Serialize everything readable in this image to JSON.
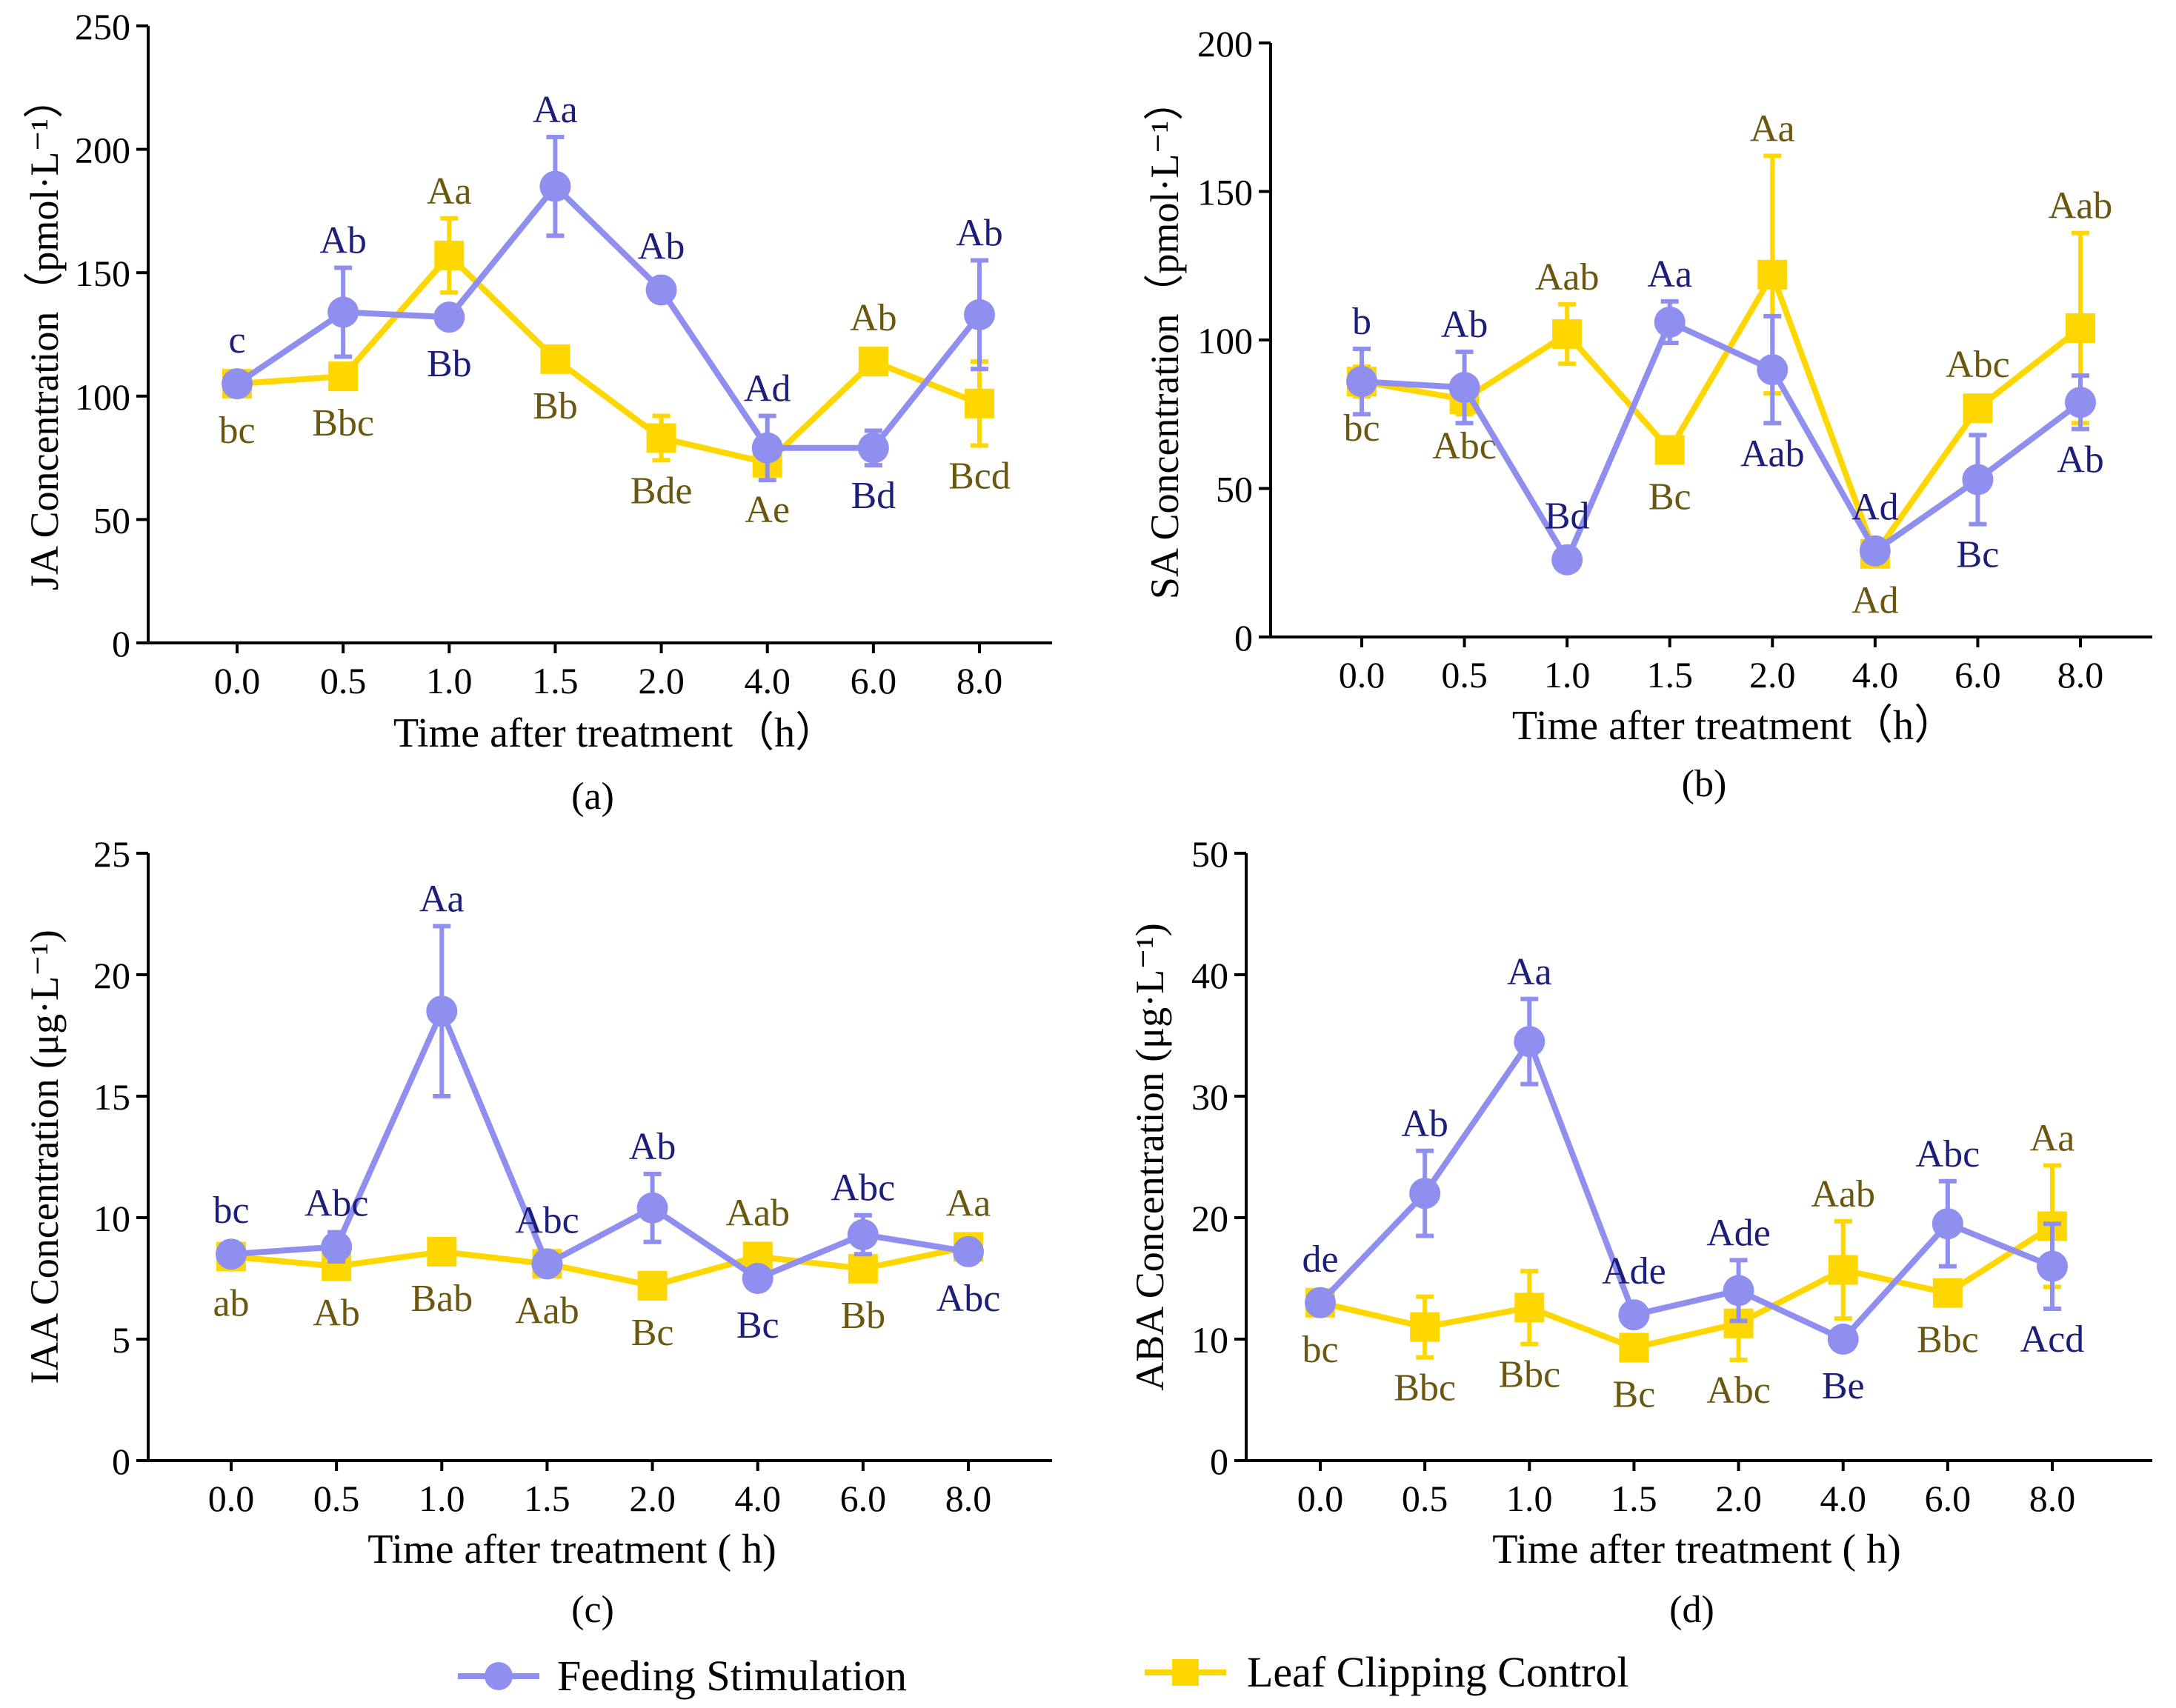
{
  "colors": {
    "feeding": "#8f8ff0",
    "control": "#ffd700",
    "label_feeding": "#1b1f7a",
    "label_control": "#6b5710",
    "axis": "#000000"
  },
  "legend": {
    "feeding": "Feeding Stimulation",
    "control": "Leaf Clipping Control"
  },
  "chart_data": [
    {
      "type": "line",
      "panel": "(a)",
      "title": "",
      "ylabel": "JA  Concentration（pmol·L⁻¹）",
      "xlabel": "Time after treatment（h）",
      "categories": [
        "0.0",
        "0.5",
        "1.0",
        "1.5",
        "2.0",
        "4.0",
        "6.0",
        "8.0"
      ],
      "ylim": [
        0,
        250
      ],
      "yticks": [
        0,
        50,
        100,
        150,
        200,
        250
      ],
      "series": [
        {
          "name": "Feeding Stimulation",
          "values": [
            105,
            134,
            132,
            185,
            143,
            79,
            79,
            133
          ],
          "errors": [
            4,
            18,
            4,
            20,
            4,
            13,
            7,
            22
          ],
          "letters": [
            "c",
            "Ab",
            "Bb",
            "Aa",
            "Ab",
            "Ad",
            "Bd",
            "Ab"
          ],
          "letter_pos": [
            "above",
            "above",
            "below",
            "above",
            "above",
            "above",
            "below",
            "above"
          ]
        },
        {
          "name": "Leaf Clipping Control",
          "values": [
            105,
            108,
            157,
            115,
            83,
            73,
            114,
            97
          ],
          "errors": [
            4,
            4,
            15,
            5,
            9,
            4,
            5,
            17
          ],
          "letters": [
            "bc",
            "Bbc",
            "Aa",
            "Bb",
            "Bde",
            "Ae",
            "Ab",
            "Bcd"
          ],
          "letter_pos": [
            "below",
            "below",
            "above",
            "below",
            "below",
            "below",
            "above",
            "below"
          ]
        }
      ]
    },
    {
      "type": "line",
      "panel": "(b)",
      "title": "",
      "ylabel": "SA  Concentration（pmol·L⁻¹）",
      "xlabel": "Time after treatment（h）",
      "categories": [
        "0.0",
        "0.5",
        "1.0",
        "1.5",
        "2.0",
        "4.0",
        "6.0",
        "8.0"
      ],
      "ylim": [
        0,
        200
      ],
      "yticks": [
        0,
        50,
        100,
        150,
        200
      ],
      "series": [
        {
          "name": "Feeding Stimulation",
          "values": [
            86,
            84,
            26,
            106,
            90,
            29,
            53,
            79
          ],
          "errors": [
            11,
            12,
            2,
            7,
            18,
            3,
            15,
            9
          ],
          "letters": [
            "b",
            "Ab",
            "Bd",
            "Aa",
            "Aab",
            "Ad",
            "Bc",
            "Ab"
          ],
          "letter_pos": [
            "above",
            "above",
            "above",
            "above",
            "below",
            "above",
            "below",
            "below"
          ]
        },
        {
          "name": "Leaf Clipping Control",
          "values": [
            86,
            80,
            102,
            63,
            122,
            28,
            77,
            104
          ],
          "errors": [
            5,
            5,
            10,
            4,
            40,
            4,
            3,
            32
          ],
          "letters": [
            "bc",
            "Abc",
            "Aab",
            "Bc",
            "Aa",
            "Ad",
            "Abc",
            "Aab"
          ],
          "letter_pos": [
            "below",
            "below",
            "above",
            "below",
            "above",
            "below",
            "above",
            "above"
          ]
        }
      ]
    },
    {
      "type": "line",
      "panel": "(c)",
      "title": "",
      "ylabel": "IAA Concentration (μg·L⁻¹)",
      "xlabel": "Time after treatment ( h)",
      "categories": [
        "0.0",
        "0.5",
        "1.0",
        "1.5",
        "2.0",
        "4.0",
        "6.0",
        "8.0"
      ],
      "ylim": [
        0,
        25
      ],
      "yticks": [
        0,
        5,
        10,
        15,
        20,
        25
      ],
      "series": [
        {
          "name": "Feeding Stimulation",
          "values": [
            8.5,
            8.8,
            18.5,
            8.1,
            10.4,
            7.5,
            9.3,
            8.6
          ],
          "errors": [
            0.3,
            0.6,
            3.5,
            0.3,
            1.4,
            0.3,
            0.8,
            0.4
          ],
          "letters": [
            "bc",
            "Abc",
            "Aa",
            "Abc",
            "Ab",
            "Bc",
            "Abc",
            "Abc"
          ],
          "letter_pos": [
            "above",
            "above",
            "above",
            "above",
            "above",
            "below",
            "above",
            "below"
          ]
        },
        {
          "name": "Leaf Clipping Control",
          "values": [
            8.4,
            8.0,
            8.6,
            8.1,
            7.2,
            8.4,
            7.9,
            8.8
          ],
          "errors": [
            0.3,
            0.3,
            0.3,
            0.3,
            0.3,
            0.3,
            0.3,
            0.3
          ],
          "letters": [
            "ab",
            "Ab",
            "Bab",
            "Aab",
            "Bc",
            "Aab",
            "Bb",
            "Aa"
          ],
          "letter_pos": [
            "below",
            "below",
            "below",
            "below",
            "below",
            "above",
            "below",
            "above"
          ]
        }
      ]
    },
    {
      "type": "line",
      "panel": "(d)",
      "title": "",
      "ylabel": "ABA Concentration (μg·L⁻¹)",
      "xlabel": "Time after treatment ( h)",
      "categories": [
        "0.0",
        "0.5",
        "1.0",
        "1.5",
        "2.0",
        "4.0",
        "6.0",
        "8.0"
      ],
      "ylim": [
        0,
        50
      ],
      "yticks": [
        0,
        10,
        20,
        30,
        40,
        50
      ],
      "series": [
        {
          "name": "Feeding Stimulation",
          "values": [
            13,
            22,
            34.5,
            12,
            14,
            10,
            19.5,
            16
          ],
          "errors": [
            0.5,
            3.5,
            3.5,
            0.5,
            2.5,
            0.5,
            3.5,
            3.5
          ],
          "letters": [
            "de",
            "Ab",
            "Aa",
            "Ade",
            "Ade",
            "Be",
            "Abc",
            "Acd"
          ],
          "letter_pos": [
            "above",
            "above",
            "above",
            "above",
            "above",
            "below",
            "above",
            "below"
          ]
        },
        {
          "name": "Leaf Clipping Control",
          "values": [
            13,
            11,
            12.6,
            9.3,
            11.3,
            15.7,
            13.8,
            19.3
          ],
          "errors": [
            0.5,
            2.5,
            3,
            0.5,
            3,
            4,
            0.5,
            5
          ],
          "letters": [
            "bc",
            "Bbc",
            "Bbc",
            "Bc",
            "Abc",
            "Aab",
            "Bbc",
            "Aa"
          ],
          "letter_pos": [
            "below",
            "below",
            "below",
            "below",
            "below",
            "above",
            "below",
            "above"
          ]
        }
      ]
    }
  ]
}
